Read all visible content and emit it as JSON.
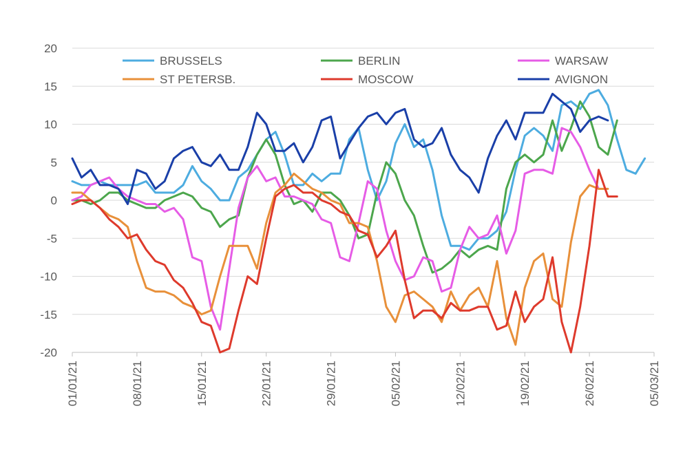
{
  "chart_data": {
    "type": "line",
    "title": "",
    "xlabel": "",
    "ylabel": "",
    "x_start": "2021-01-01",
    "x_ticks": [
      "01/01/21",
      "08/01/21",
      "15/01/21",
      "22/01/21",
      "29/01/21",
      "05/02/21",
      "12/02/21",
      "19/02/21",
      "26/02/21",
      "05/03/21"
    ],
    "ylim": [
      -20,
      20
    ],
    "y_ticks": [
      20,
      15,
      10,
      5,
      0,
      -5,
      -10,
      -15,
      -20
    ],
    "grid": "horizontal",
    "legend": "top",
    "series": [
      {
        "name": "BRUSSELS",
        "color": "#4DACE0",
        "values": [
          2.5,
          2,
          2,
          2.5,
          2,
          2,
          2,
          2,
          2.5,
          1,
          1,
          1,
          2,
          4.5,
          2.5,
          1.5,
          0,
          0,
          3,
          4,
          6,
          8,
          9,
          6,
          2,
          2,
          3.5,
          2.5,
          3.5,
          3.5,
          8,
          9.5,
          4,
          0,
          2.5,
          7.5,
          10,
          7,
          8,
          4,
          -2,
          -6,
          -6,
          -6.5,
          -5,
          -5,
          -4,
          -1.5,
          4,
          8.5,
          9.5,
          8.5,
          6.5,
          12.5,
          13,
          12,
          14,
          14.5,
          12.5,
          8,
          4,
          3.5,
          5.5
        ]
      },
      {
        "name": "BERLIN",
        "color": "#4CA64C",
        "values": [
          0,
          0,
          -0.5,
          0,
          1,
          1,
          0,
          -0.5,
          -1,
          -1,
          0,
          0.5,
          1,
          0.5,
          -1,
          -1.5,
          -3.5,
          -2.5,
          -2,
          3,
          6,
          8,
          6,
          2,
          -0.5,
          0,
          -1.5,
          1,
          1,
          0,
          -2,
          -5,
          -4.5,
          1,
          5,
          3.5,
          0,
          -2,
          -6,
          -9.5,
          -9,
          -8,
          -6.5,
          -7.5,
          -6.5,
          -6,
          -6.5,
          1.5,
          5,
          6,
          5,
          6,
          10.5,
          6.5,
          9.5,
          13,
          11,
          7,
          6,
          10.5
        ]
      },
      {
        "name": "WARSAW",
        "color": "#E65CE6",
        "values": [
          0,
          0.5,
          2,
          2.5,
          3,
          1.5,
          0.5,
          0,
          -0.5,
          -0.5,
          -1.5,
          -1,
          -2.5,
          -7.5,
          -8,
          -14,
          -17,
          -9,
          -1,
          3,
          4.5,
          2.5,
          3,
          0.5,
          0.5,
          0,
          -0.5,
          -2.5,
          -3,
          -7.5,
          -8,
          -3,
          2.5,
          1.5,
          -4,
          -8,
          -10.5,
          -10,
          -7.5,
          -8,
          -12,
          -11.5,
          -6.5,
          -3.5,
          -5,
          -4.5,
          -2,
          -7,
          -4,
          3.5,
          4,
          4,
          3.5,
          9.5,
          9,
          7,
          4,
          1.5
        ]
      },
      {
        "name": "ST PETERSB.",
        "color": "#E8903A",
        "values": [
          1,
          1,
          0,
          -1,
          -2,
          -2.5,
          -3.5,
          -8,
          -11.5,
          -12,
          -12,
          -12.5,
          -13.5,
          -14,
          -15,
          -14.5,
          -10,
          -6,
          -6,
          -6,
          -9,
          -3,
          1,
          2,
          3.5,
          2.5,
          1.5,
          1,
          0,
          -0.5,
          -3,
          -3,
          -3.5,
          -8,
          -14,
          -16,
          -12.5,
          -12,
          -13,
          -14,
          -16,
          -12,
          -14.5,
          -12.5,
          -11.5,
          -14,
          -8,
          -15.5,
          -19,
          -11.5,
          -8,
          -7,
          -13,
          -14,
          -5.5,
          0.5,
          2,
          1.5,
          1.5
        ]
      },
      {
        "name": "MOSCOW",
        "color": "#DE3A2C",
        "values": [
          -0.5,
          0,
          0,
          -1,
          -2.5,
          -3.5,
          -5,
          -4.5,
          -6.5,
          -8,
          -8.5,
          -10.5,
          -11.5,
          -13.5,
          -16,
          -16.5,
          -20,
          -19.5,
          -14.5,
          -10,
          -11,
          -5,
          0.5,
          1.5,
          2,
          1,
          1,
          0,
          -0.5,
          -1.5,
          -2,
          -4,
          -4.5,
          -7.5,
          -6,
          -4,
          -10.5,
          -15.5,
          -14.5,
          -14.5,
          -15.5,
          -13.5,
          -14.5,
          -14.5,
          -14,
          -14,
          -17,
          -16.5,
          -12,
          -16,
          -14,
          -13,
          -7.5,
          -16,
          -20,
          -14,
          -6,
          4,
          0.5,
          0.5
        ]
      },
      {
        "name": "AVIGNON",
        "color": "#1A3FA8",
        "values": [
          5.5,
          3,
          4,
          2,
          2,
          1.5,
          -0.5,
          4,
          3.5,
          1.5,
          2.5,
          5.5,
          6.5,
          7,
          5,
          4.5,
          6,
          4,
          4,
          7,
          11.5,
          10,
          6.5,
          6.5,
          7.5,
          5,
          7,
          10.5,
          11,
          5.5,
          7.5,
          9.5,
          11,
          11.5,
          10,
          11.5,
          12,
          8,
          7,
          7.5,
          9.5,
          6,
          4,
          3,
          1,
          5.5,
          8.5,
          10.5,
          8,
          11.5,
          11.5,
          11.5,
          14,
          13,
          12,
          9,
          10.5,
          11,
          10.5
        ]
      }
    ]
  }
}
